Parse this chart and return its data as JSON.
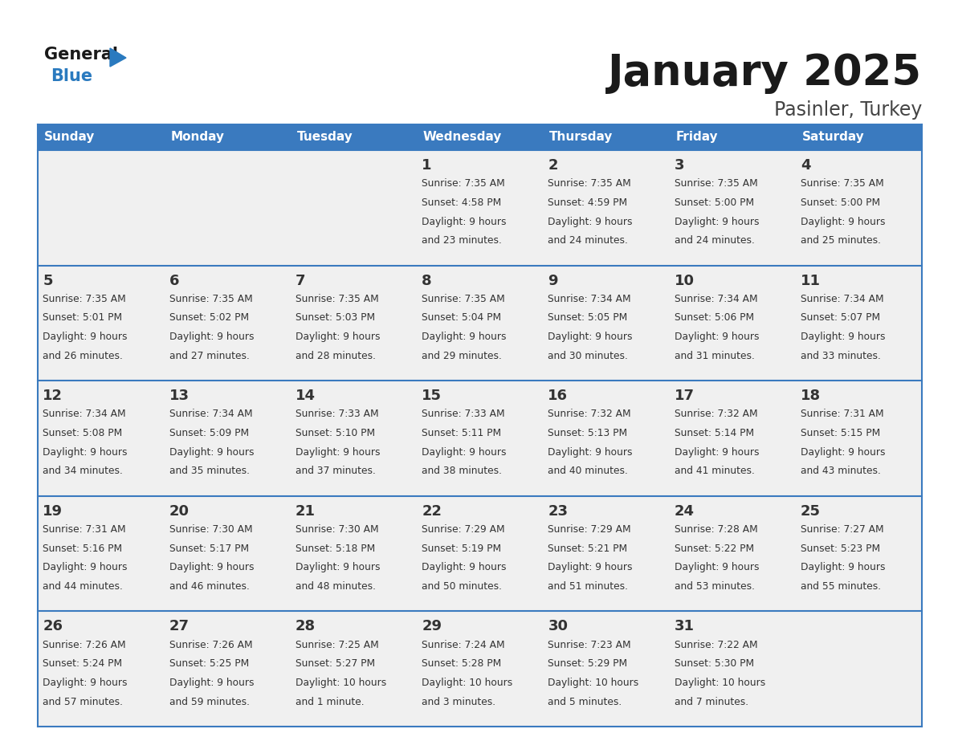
{
  "title": "January 2025",
  "subtitle": "Pasinler, Turkey",
  "days_of_week": [
    "Sunday",
    "Monday",
    "Tuesday",
    "Wednesday",
    "Thursday",
    "Friday",
    "Saturday"
  ],
  "header_bg": "#3a7abf",
  "header_text": "#ffffff",
  "cell_bg_light": "#f0f0f0",
  "border_color": "#3a7abf",
  "text_color": "#333333",
  "logo_general_color": "#1a1a1a",
  "logo_blue_color": "#2a7abf",
  "title_color": "#1a1a1a",
  "subtitle_color": "#444444",
  "calendar_data": [
    [
      {
        "day": null,
        "sunrise": null,
        "sunset": null,
        "daylight_line1": null,
        "daylight_line2": null
      },
      {
        "day": null,
        "sunrise": null,
        "sunset": null,
        "daylight_line1": null,
        "daylight_line2": null
      },
      {
        "day": null,
        "sunrise": null,
        "sunset": null,
        "daylight_line1": null,
        "daylight_line2": null
      },
      {
        "day": "1",
        "sunrise": "7:35 AM",
        "sunset": "4:58 PM",
        "daylight_line1": "9 hours",
        "daylight_line2": "and 23 minutes."
      },
      {
        "day": "2",
        "sunrise": "7:35 AM",
        "sunset": "4:59 PM",
        "daylight_line1": "9 hours",
        "daylight_line2": "and 24 minutes."
      },
      {
        "day": "3",
        "sunrise": "7:35 AM",
        "sunset": "5:00 PM",
        "daylight_line1": "9 hours",
        "daylight_line2": "and 24 minutes."
      },
      {
        "day": "4",
        "sunrise": "7:35 AM",
        "sunset": "5:00 PM",
        "daylight_line1": "9 hours",
        "daylight_line2": "and 25 minutes."
      }
    ],
    [
      {
        "day": "5",
        "sunrise": "7:35 AM",
        "sunset": "5:01 PM",
        "daylight_line1": "9 hours",
        "daylight_line2": "and 26 minutes."
      },
      {
        "day": "6",
        "sunrise": "7:35 AM",
        "sunset": "5:02 PM",
        "daylight_line1": "9 hours",
        "daylight_line2": "and 27 minutes."
      },
      {
        "day": "7",
        "sunrise": "7:35 AM",
        "sunset": "5:03 PM",
        "daylight_line1": "9 hours",
        "daylight_line2": "and 28 minutes."
      },
      {
        "day": "8",
        "sunrise": "7:35 AM",
        "sunset": "5:04 PM",
        "daylight_line1": "9 hours",
        "daylight_line2": "and 29 minutes."
      },
      {
        "day": "9",
        "sunrise": "7:34 AM",
        "sunset": "5:05 PM",
        "daylight_line1": "9 hours",
        "daylight_line2": "and 30 minutes."
      },
      {
        "day": "10",
        "sunrise": "7:34 AM",
        "sunset": "5:06 PM",
        "daylight_line1": "9 hours",
        "daylight_line2": "and 31 minutes."
      },
      {
        "day": "11",
        "sunrise": "7:34 AM",
        "sunset": "5:07 PM",
        "daylight_line1": "9 hours",
        "daylight_line2": "and 33 minutes."
      }
    ],
    [
      {
        "day": "12",
        "sunrise": "7:34 AM",
        "sunset": "5:08 PM",
        "daylight_line1": "9 hours",
        "daylight_line2": "and 34 minutes."
      },
      {
        "day": "13",
        "sunrise": "7:34 AM",
        "sunset": "5:09 PM",
        "daylight_line1": "9 hours",
        "daylight_line2": "and 35 minutes."
      },
      {
        "day": "14",
        "sunrise": "7:33 AM",
        "sunset": "5:10 PM",
        "daylight_line1": "9 hours",
        "daylight_line2": "and 37 minutes."
      },
      {
        "day": "15",
        "sunrise": "7:33 AM",
        "sunset": "5:11 PM",
        "daylight_line1": "9 hours",
        "daylight_line2": "and 38 minutes."
      },
      {
        "day": "16",
        "sunrise": "7:32 AM",
        "sunset": "5:13 PM",
        "daylight_line1": "9 hours",
        "daylight_line2": "and 40 minutes."
      },
      {
        "day": "17",
        "sunrise": "7:32 AM",
        "sunset": "5:14 PM",
        "daylight_line1": "9 hours",
        "daylight_line2": "and 41 minutes."
      },
      {
        "day": "18",
        "sunrise": "7:31 AM",
        "sunset": "5:15 PM",
        "daylight_line1": "9 hours",
        "daylight_line2": "and 43 minutes."
      }
    ],
    [
      {
        "day": "19",
        "sunrise": "7:31 AM",
        "sunset": "5:16 PM",
        "daylight_line1": "9 hours",
        "daylight_line2": "and 44 minutes."
      },
      {
        "day": "20",
        "sunrise": "7:30 AM",
        "sunset": "5:17 PM",
        "daylight_line1": "9 hours",
        "daylight_line2": "and 46 minutes."
      },
      {
        "day": "21",
        "sunrise": "7:30 AM",
        "sunset": "5:18 PM",
        "daylight_line1": "9 hours",
        "daylight_line2": "and 48 minutes."
      },
      {
        "day": "22",
        "sunrise": "7:29 AM",
        "sunset": "5:19 PM",
        "daylight_line1": "9 hours",
        "daylight_line2": "and 50 minutes."
      },
      {
        "day": "23",
        "sunrise": "7:29 AM",
        "sunset": "5:21 PM",
        "daylight_line1": "9 hours",
        "daylight_line2": "and 51 minutes."
      },
      {
        "day": "24",
        "sunrise": "7:28 AM",
        "sunset": "5:22 PM",
        "daylight_line1": "9 hours",
        "daylight_line2": "and 53 minutes."
      },
      {
        "day": "25",
        "sunrise": "7:27 AM",
        "sunset": "5:23 PM",
        "daylight_line1": "9 hours",
        "daylight_line2": "and 55 minutes."
      }
    ],
    [
      {
        "day": "26",
        "sunrise": "7:26 AM",
        "sunset": "5:24 PM",
        "daylight_line1": "9 hours",
        "daylight_line2": "and 57 minutes."
      },
      {
        "day": "27",
        "sunrise": "7:26 AM",
        "sunset": "5:25 PM",
        "daylight_line1": "9 hours",
        "daylight_line2": "and 59 minutes."
      },
      {
        "day": "28",
        "sunrise": "7:25 AM",
        "sunset": "5:27 PM",
        "daylight_line1": "10 hours",
        "daylight_line2": "and 1 minute."
      },
      {
        "day": "29",
        "sunrise": "7:24 AM",
        "sunset": "5:28 PM",
        "daylight_line1": "10 hours",
        "daylight_line2": "and 3 minutes."
      },
      {
        "day": "30",
        "sunrise": "7:23 AM",
        "sunset": "5:29 PM",
        "daylight_line1": "10 hours",
        "daylight_line2": "and 5 minutes."
      },
      {
        "day": "31",
        "sunrise": "7:22 AM",
        "sunset": "5:30 PM",
        "daylight_line1": "10 hours",
        "daylight_line2": "and 7 minutes."
      },
      {
        "day": null,
        "sunrise": null,
        "sunset": null,
        "daylight_line1": null,
        "daylight_line2": null
      }
    ]
  ]
}
